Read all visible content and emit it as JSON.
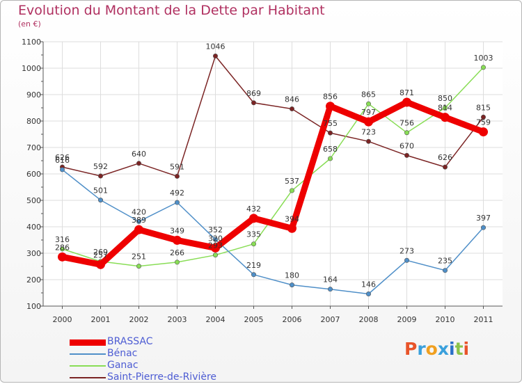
{
  "title": "Evolution du Montant de la Dette par Habitant",
  "unit": "(en €)",
  "logo": {
    "text": "Proxiti",
    "letters": [
      "P",
      "r",
      "o",
      "x",
      "i",
      "t",
      "i"
    ],
    "colors": [
      "#e8542a",
      "#3aa0dc",
      "#f0a020",
      "#3aa0dc",
      "#2a70c8",
      "#8bc34a",
      "#e8542a"
    ]
  },
  "chart_data": {
    "type": "line",
    "x": [
      "2000",
      "2001",
      "2002",
      "2003",
      "2004",
      "2005",
      "2006",
      "2007",
      "2008",
      "2009",
      "2010",
      "2011"
    ],
    "ylim": [
      100,
      1100
    ],
    "yticks": [
      100,
      200,
      300,
      400,
      500,
      600,
      700,
      800,
      900,
      1000,
      1100
    ],
    "grid": true,
    "legend_position": "bottom-left",
    "series": [
      {
        "name": "BRASSAC",
        "color": "#ee0000",
        "values": [
          286,
          257,
          389,
          349,
          320,
          432,
          394,
          856,
          797,
          871,
          814,
          759
        ]
      },
      {
        "name": "Bénac",
        "color": "#4f8fc8",
        "values": [
          616,
          501,
          420,
          492,
          352,
          219,
          180,
          164,
          146,
          273,
          235,
          397
        ]
      },
      {
        "name": "Ganac",
        "color": "#88dd55",
        "values": [
          316,
          269,
          251,
          266,
          293,
          335,
          537,
          658,
          865,
          756,
          850,
          1003
        ]
      },
      {
        "name": "Saint-Pierre-de-Rivière",
        "color": "#7b2424",
        "values": [
          626,
          592,
          640,
          591,
          1046,
          869,
          846,
          755,
          723,
          670,
          626,
          815
        ]
      }
    ]
  }
}
